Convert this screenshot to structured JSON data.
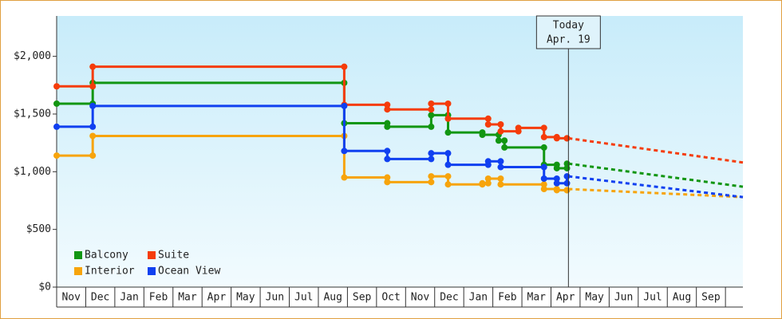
{
  "chart_data": {
    "type": "step-line",
    "xlim": [
      0,
      23.6
    ],
    "ylim": [
      0,
      2350
    ],
    "yticks": [
      {
        "value": 0,
        "label": "$0"
      },
      {
        "value": 500,
        "label": "$500"
      },
      {
        "value": 1000,
        "label": "$1,000"
      },
      {
        "value": 1500,
        "label": "$1,500"
      },
      {
        "value": 2000,
        "label": "$2,000"
      }
    ],
    "xticks": [
      {
        "value": 0.5,
        "label": "Nov"
      },
      {
        "value": 1.5,
        "label": "Dec"
      },
      {
        "value": 2.5,
        "label": "Jan"
      },
      {
        "value": 3.5,
        "label": "Feb"
      },
      {
        "value": 4.5,
        "label": "Mar"
      },
      {
        "value": 5.5,
        "label": "Apr"
      },
      {
        "value": 6.5,
        "label": "May"
      },
      {
        "value": 7.5,
        "label": "Jun"
      },
      {
        "value": 8.5,
        "label": "Jul"
      },
      {
        "value": 9.5,
        "label": "Aug"
      },
      {
        "value": 10.5,
        "label": "Sep"
      },
      {
        "value": 11.5,
        "label": "Oct"
      },
      {
        "value": 12.5,
        "label": "Nov"
      },
      {
        "value": 13.5,
        "label": "Dec"
      },
      {
        "value": 14.5,
        "label": "Jan"
      },
      {
        "value": 15.5,
        "label": "Feb"
      },
      {
        "value": 16.5,
        "label": "Mar"
      },
      {
        "value": 17.5,
        "label": "Apr"
      },
      {
        "value": 18.5,
        "label": "May"
      },
      {
        "value": 19.5,
        "label": "Jun"
      },
      {
        "value": 20.5,
        "label": "Jul"
      },
      {
        "value": 21.5,
        "label": "Aug"
      },
      {
        "value": 22.5,
        "label": "Sep"
      }
    ],
    "today": {
      "x": 17.6,
      "label": "Today",
      "date": "Apr. 19"
    },
    "series": [
      {
        "name": "Balcony",
        "color": "#129612",
        "x": [
          0,
          1.24,
          9.89,
          11.37,
          12.88,
          13.46,
          14.64,
          15.2,
          15.4,
          16.76,
          17.2,
          17.55
        ],
        "values": [
          1590,
          1770,
          1420,
          1390,
          1490,
          1340,
          1320,
          1270,
          1210,
          1060,
          1030,
          1070
        ],
        "forecast_x": [
          17.6,
          23.6
        ],
        "forecast_values": [
          1070,
          870
        ]
      },
      {
        "name": "Suite",
        "color": "#f53c0a",
        "x": [
          0,
          1.24,
          9.89,
          11.37,
          12.88,
          13.46,
          14.84,
          15.27,
          15.88,
          16.76,
          17.2,
          17.55
        ],
        "values": [
          1740,
          1910,
          1580,
          1540,
          1590,
          1460,
          1410,
          1350,
          1380,
          1300,
          1290,
          1290
        ],
        "forecast_x": [
          17.6,
          23.6
        ],
        "forecast_values": [
          1290,
          1080
        ]
      },
      {
        "name": "Interior",
        "color": "#f7a40c",
        "x": [
          0,
          1.24,
          9.89,
          11.37,
          12.88,
          13.46,
          14.64,
          14.84,
          15.27,
          16.76,
          17.2,
          17.55
        ],
        "values": [
          1140,
          1310,
          950,
          910,
          960,
          890,
          900,
          940,
          890,
          850,
          840,
          840
        ],
        "forecast_x": [
          17.6,
          23.6
        ],
        "forecast_values": [
          850,
          780
        ]
      },
      {
        "name": "Ocean View",
        "color": "#1040f0",
        "x": [
          0,
          1.24,
          9.89,
          11.37,
          12.88,
          13.46,
          14.84,
          15.27,
          16.76,
          17.2,
          17.55
        ],
        "values": [
          1390,
          1570,
          1180,
          1110,
          1160,
          1060,
          1090,
          1040,
          940,
          900,
          960
        ],
        "forecast_x": [
          17.6,
          23.6
        ],
        "forecast_values": [
          960,
          780
        ]
      }
    ]
  }
}
